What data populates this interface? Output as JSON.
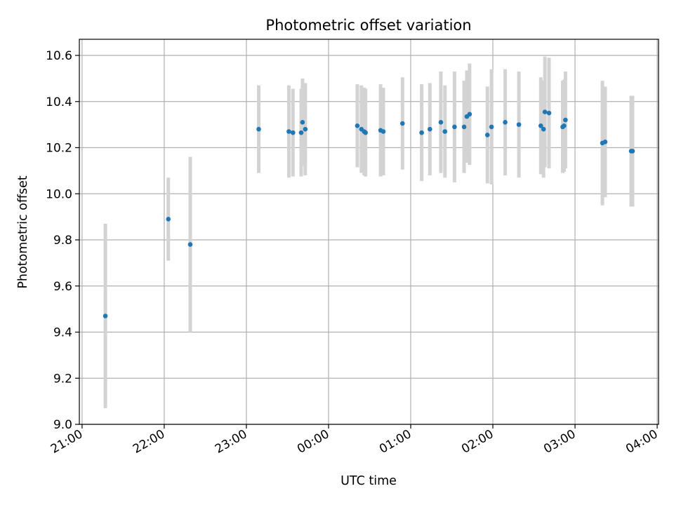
{
  "chart_data": {
    "type": "scatter",
    "title": "Photometric offset variation",
    "xlabel": "UTC time",
    "ylabel": "Photometric offset",
    "x_is_time": true,
    "xlim": [
      "21:00",
      "04:00"
    ],
    "ylim": [
      9.0,
      10.67
    ],
    "grid": true,
    "x_ticks": [
      "21:00",
      "22:00",
      "23:00",
      "00:00",
      "01:00",
      "02:00",
      "03:00",
      "04:00"
    ],
    "y_ticks": [
      "9.0",
      "9.2",
      "9.4",
      "9.6",
      "9.8",
      "10.0",
      "10.2",
      "10.4",
      "10.6"
    ],
    "colors": {
      "point": "#1f77b4",
      "errorbar": "#d3d3d3",
      "grid": "#b0b0b0"
    },
    "points": [
      {
        "t": "21:17",
        "y": 9.47,
        "yerr": 0.4
      },
      {
        "t": "22:03",
        "y": 9.89,
        "yerr": 0.18
      },
      {
        "t": "22:19",
        "y": 9.78,
        "yerr": 0.38
      },
      {
        "t": "23:09",
        "y": 10.28,
        "yerr": 0.19
      },
      {
        "t": "23:31",
        "y": 10.27,
        "yerr": 0.2
      },
      {
        "t": "23:34",
        "y": 10.265,
        "yerr": 0.19
      },
      {
        "t": "23:40",
        "y": 10.265,
        "yerr": 0.19
      },
      {
        "t": "23:41",
        "y": 10.31,
        "yerr": 0.19
      },
      {
        "t": "23:43",
        "y": 10.28,
        "yerr": 0.2
      },
      {
        "t": "00:21",
        "y": 10.295,
        "yerr": 0.18
      },
      {
        "t": "00:24",
        "y": 10.28,
        "yerr": 0.19
      },
      {
        "t": "00:26",
        "y": 10.27,
        "yerr": 0.19
      },
      {
        "t": "00:27",
        "y": 10.265,
        "yerr": 0.19
      },
      {
        "t": "00:38",
        "y": 10.275,
        "yerr": 0.2
      },
      {
        "t": "00:40",
        "y": 10.27,
        "yerr": 0.19
      },
      {
        "t": "00:54",
        "y": 10.305,
        "yerr": 0.2
      },
      {
        "t": "01:08",
        "y": 10.265,
        "yerr": 0.21
      },
      {
        "t": "01:14",
        "y": 10.28,
        "yerr": 0.2
      },
      {
        "t": "01:22",
        "y": 10.31,
        "yerr": 0.22
      },
      {
        "t": "01:25",
        "y": 10.27,
        "yerr": 0.2
      },
      {
        "t": "01:32",
        "y": 10.29,
        "yerr": 0.24
      },
      {
        "t": "01:39",
        "y": 10.29,
        "yerr": 0.2
      },
      {
        "t": "01:41",
        "y": 10.335,
        "yerr": 0.2
      },
      {
        "t": "01:43",
        "y": 10.345,
        "yerr": 0.22
      },
      {
        "t": "01:56",
        "y": 10.255,
        "yerr": 0.21
      },
      {
        "t": "01:59",
        "y": 10.29,
        "yerr": 0.25
      },
      {
        "t": "02:09",
        "y": 10.31,
        "yerr": 0.23
      },
      {
        "t": "02:19",
        "y": 10.3,
        "yerr": 0.23
      },
      {
        "t": "02:35",
        "y": 10.295,
        "yerr": 0.21
      },
      {
        "t": "02:37",
        "y": 10.28,
        "yerr": 0.21
      },
      {
        "t": "02:38",
        "y": 10.355,
        "yerr": 0.24
      },
      {
        "t": "02:41",
        "y": 10.35,
        "yerr": 0.24
      },
      {
        "t": "02:51",
        "y": 10.29,
        "yerr": 0.2
      },
      {
        "t": "02:52",
        "y": 10.295,
        "yerr": 0.2
      },
      {
        "t": "02:53",
        "y": 10.32,
        "yerr": 0.21
      },
      {
        "t": "03:20",
        "y": 10.22,
        "yerr": 0.27
      },
      {
        "t": "03:22",
        "y": 10.225,
        "yerr": 0.24
      },
      {
        "t": "03:41",
        "y": 10.185,
        "yerr": 0.24
      },
      {
        "t": "03:42",
        "y": 10.185,
        "yerr": 0.24
      }
    ]
  }
}
